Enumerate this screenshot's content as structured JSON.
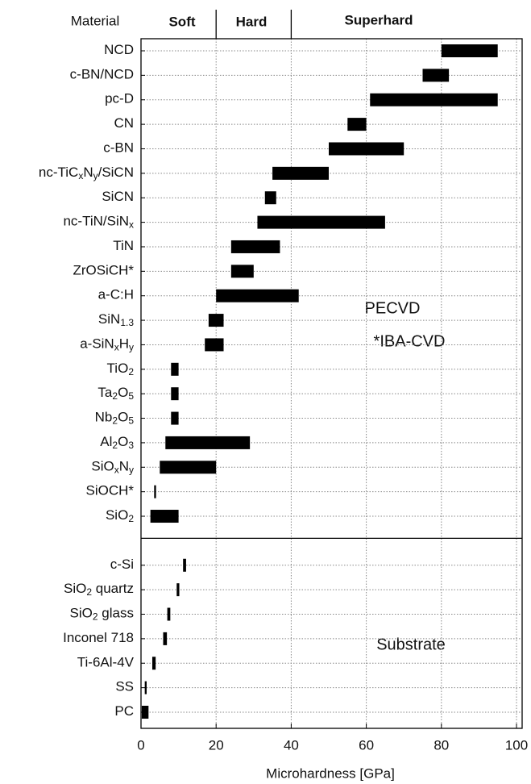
{
  "chart_data": {
    "type": "floating-bar",
    "header": {
      "category_title": "Material",
      "zones": [
        "Soft",
        "Hard",
        "Superhard"
      ],
      "zone_bounds": [
        20,
        40
      ]
    },
    "x_label": "Microhardness [GPa]",
    "xlim": [
      0,
      101.5
    ],
    "xticks": [
      0,
      20,
      40,
      60,
      80,
      100
    ],
    "grid": true,
    "color": "#000000",
    "groups": [
      {
        "annotations": [
          "PECVD",
          "*IBA-CVD"
        ],
        "categories": [
          [
            "NCD"
          ],
          [
            "c-BN/NCD"
          ],
          [
            "pc-D"
          ],
          [
            "CN"
          ],
          [
            "c-BN"
          ],
          [
            "nc-TiC",
            "x",
            "N",
            "y",
            "/SiCN"
          ],
          [
            "SiCN"
          ],
          [
            "nc-TiN/SiN",
            "x"
          ],
          [
            "TiN"
          ],
          [
            "ZrOSiCH*"
          ],
          [
            "a-C:H"
          ],
          [
            "SiN",
            "1.3"
          ],
          [
            "a-SiN",
            "x",
            "H",
            "y"
          ],
          [
            "TiO",
            "2"
          ],
          [
            "Ta",
            "2",
            "O",
            "5"
          ],
          [
            "Nb",
            "2",
            "O",
            "5"
          ],
          [
            "Al",
            "2",
            "O",
            "3"
          ],
          [
            "SiO",
            "x",
            "N",
            "y"
          ],
          [
            "SiOCH*"
          ],
          [
            "SiO",
            "2"
          ]
        ],
        "low": [
          80,
          75,
          61,
          55,
          50,
          35,
          33,
          31,
          24,
          24,
          20,
          18,
          17,
          8,
          8,
          8,
          6.5,
          5,
          3.5,
          2.5
        ],
        "high": [
          95,
          82,
          95,
          60,
          70,
          50,
          36,
          65,
          37,
          30,
          42,
          22,
          22,
          10,
          10,
          10,
          29,
          20,
          4,
          10
        ]
      },
      {
        "annotations": [
          "Substrate"
        ],
        "categories": [
          [
            "c-Si"
          ],
          [
            "SiO",
            "2",
            " quartz"
          ],
          [
            "SiO",
            "2",
            " glass"
          ],
          [
            "Inconel 718"
          ],
          [
            "Ti-6Al-4V"
          ],
          [
            "SS"
          ],
          [
            "PC"
          ]
        ],
        "low": [
          11.2,
          9.5,
          7,
          5.9,
          3,
          1,
          0.2
        ],
        "high": [
          12,
          10.2,
          7.8,
          6.9,
          3.9,
          1.5,
          2
        ]
      }
    ]
  }
}
